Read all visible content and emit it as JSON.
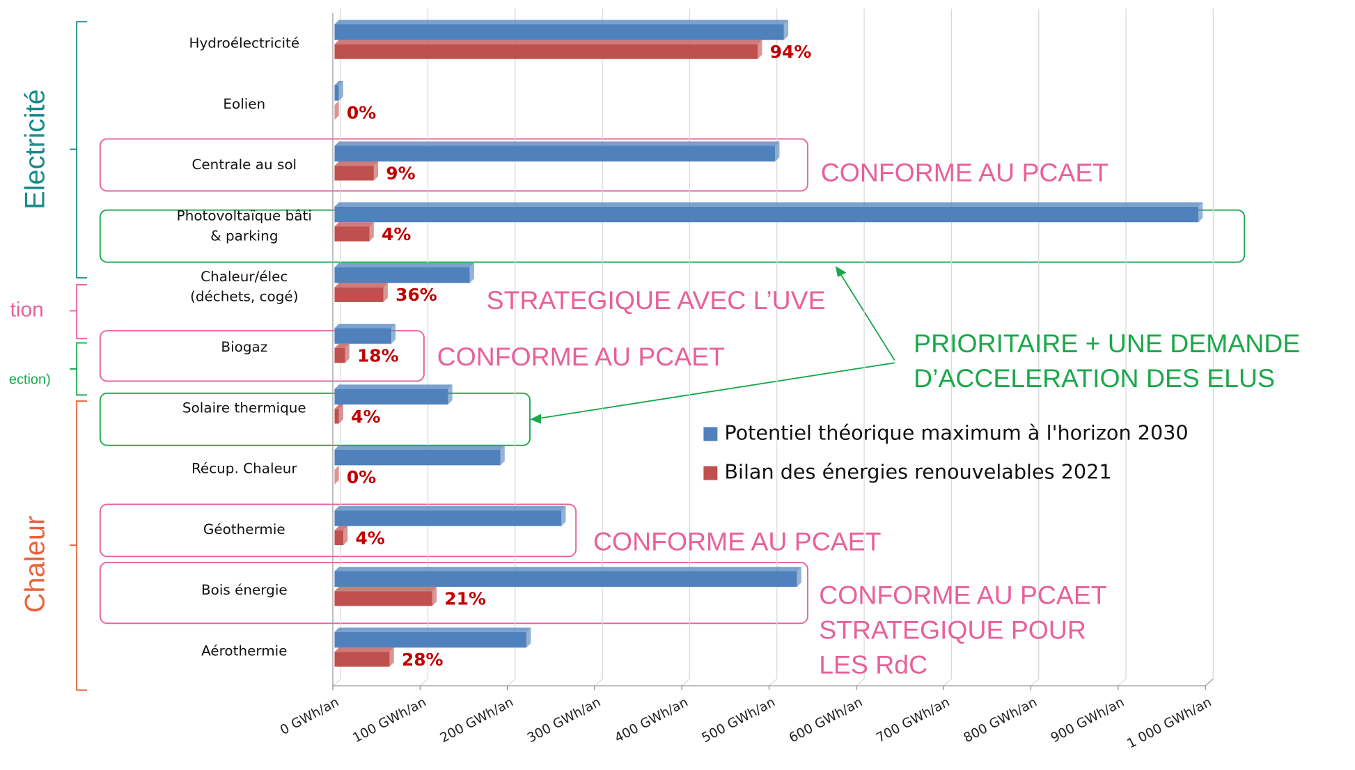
{
  "chart_data": {
    "type": "bar",
    "orientation": "horizontal",
    "categories": [
      "Hydroélectricité",
      "Eolien",
      "Centrale au sol",
      "Photovoltaïque bâti & parking",
      "Chaleur/élec (déchets, cogé)",
      "Biogaz",
      "Solaire thermique",
      "Récup. Chaleur",
      "Géothermie",
      "Bois énergie",
      "Aérothermie"
    ],
    "series": [
      {
        "name": "Potentiel théorique maximum à l'horizon 2030",
        "color": "#4f81bd",
        "values": [
          515,
          5,
          505,
          990,
          155,
          65,
          130,
          190,
          260,
          530,
          220
        ]
      },
      {
        "name": "Bilan des énergies renouvelables 2021",
        "color": "#c0504d",
        "values": [
          485,
          0,
          45,
          40,
          56,
          12,
          5,
          0,
          10,
          112,
          63
        ]
      }
    ],
    "percent_labels": [
      "94%",
      "0%",
      "9%",
      "4%",
      "36%",
      "18%",
      "4%",
      "0%",
      "4%",
      "21%",
      "28%"
    ],
    "xlim": [
      0,
      1000
    ],
    "xticks": [
      {
        "value": 0,
        "label": "0 GWh/an"
      },
      {
        "value": 100,
        "label": "100 GWh/an"
      },
      {
        "value": 200,
        "label": "200 GWh/an"
      },
      {
        "value": 300,
        "label": "300 GWh/an"
      },
      {
        "value": 400,
        "label": "400 GWh/an"
      },
      {
        "value": 500,
        "label": "500 GWh/an"
      },
      {
        "value": 600,
        "label": "600 GWh/an"
      },
      {
        "value": 700,
        "label": "700 GWh/an"
      },
      {
        "value": 800,
        "label": "800 GWh/an"
      },
      {
        "value": 900,
        "label": "900 GWh/an"
      },
      {
        "value": 1000,
        "label": "1 000 GWh/an"
      }
    ],
    "grid": true,
    "groups": [
      "Electricité",
      "tion",
      "ection)",
      "Chaleur"
    ],
    "annotations": [
      {
        "lines": [
          "CONFORME AU PCAET"
        ]
      },
      {
        "lines": [
          "STRATEGIQUE AVEC L’UVE"
        ]
      },
      {
        "lines": [
          "CONFORME AU PCAET"
        ]
      },
      {
        "lines": [
          "PRIORITAIRE + UNE DEMANDE",
          "D’ACCELERATION DES ELUS"
        ]
      },
      {
        "lines": [
          "CONFORME AU PCAET"
        ]
      },
      {
        "lines": [
          "CONFORME AU PCAET",
          "STRATEGIQUE POUR",
          "LES RdC"
        ]
      }
    ]
  }
}
